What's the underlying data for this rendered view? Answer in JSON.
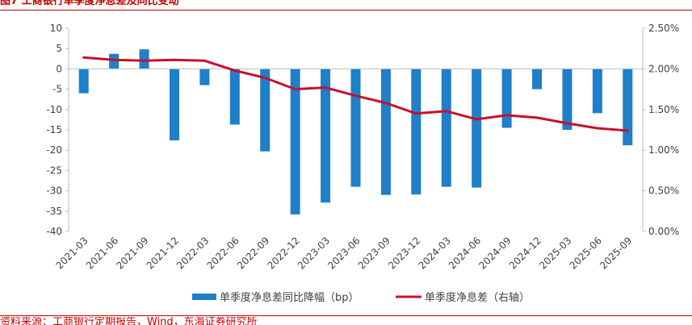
{
  "figure": {
    "title": "图7 工商银行单季度净息差及同比变动",
    "source": "资料来源：工商银行定期报告，Wind，东海证券研究所"
  },
  "chart_data": {
    "type": "bar",
    "categories": [
      "2021-03",
      "2021-06",
      "2021-09",
      "2021-12",
      "2022-03",
      "2022-06",
      "2022-09",
      "2022-12",
      "2023-03",
      "2023-06",
      "2023-09",
      "2023-12",
      "2024-03",
      "2024-06",
      "2024-09",
      "2024-12",
      "2025-03",
      "2025-06",
      "2025-09"
    ],
    "left_axis": {
      "ylim": [
        -40,
        10
      ],
      "ticks": [
        "10",
        "5",
        "0",
        "-5",
        "-10",
        "-15",
        "-20",
        "-25",
        "-30",
        "-35",
        "-40"
      ]
    },
    "right_axis": {
      "ylim": [
        0,
        2.5
      ],
      "ticks": [
        "2.50%",
        "2.00%",
        "1.50%",
        "1.00%",
        "0.50%",
        "0.00%"
      ]
    },
    "series": [
      {
        "name": "单季度净息差同比降幅（bp）",
        "type": "bar",
        "axis": "left",
        "color": "#1f7fc8",
        "values": [
          -6,
          3.7,
          4.8,
          -17.6,
          -4,
          -13.7,
          -20.3,
          -35.8,
          -32.9,
          -29,
          -31,
          -30.9,
          -29,
          -29.2,
          -14.5,
          -5,
          -15,
          -10.9,
          -18.8
        ]
      },
      {
        "name": "单季度净息差（右轴）",
        "type": "line",
        "axis": "right",
        "color": "#c8102e",
        "values": [
          2.14,
          2.11,
          2.1,
          2.11,
          2.1,
          1.98,
          1.89,
          1.75,
          1.77,
          1.67,
          1.58,
          1.45,
          1.48,
          1.38,
          1.43,
          1.4,
          1.33,
          1.27,
          1.24
        ]
      }
    ],
    "legend_position": "bottom",
    "grid": false
  }
}
